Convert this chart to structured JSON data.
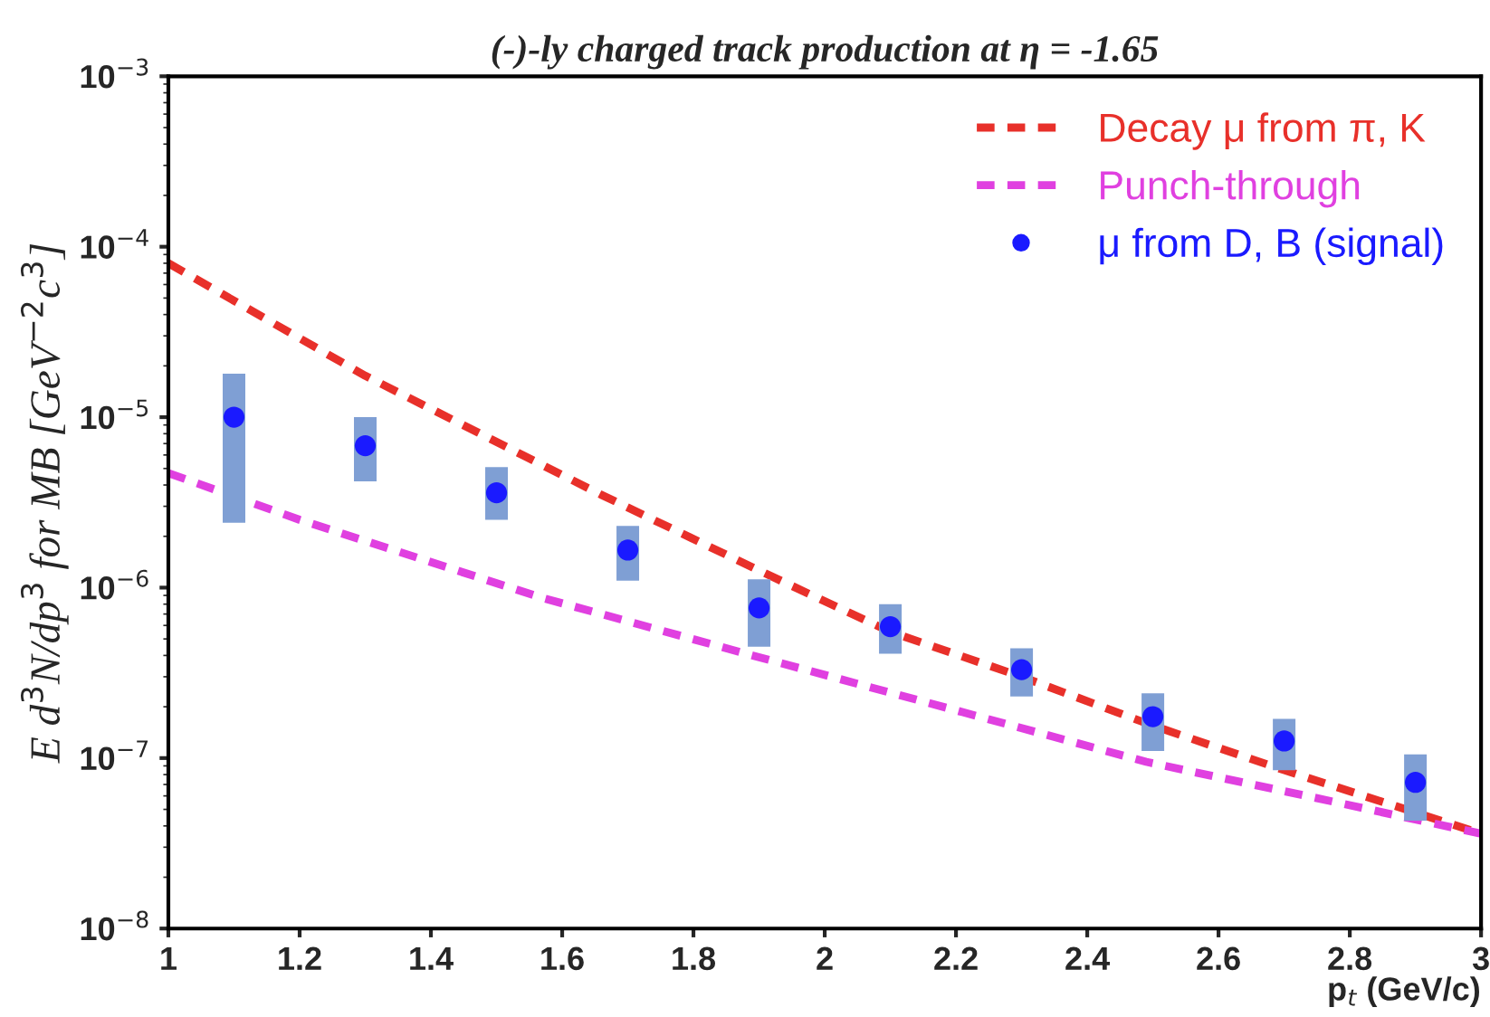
{
  "chart_data": {
    "type": "line",
    "title": "(-)-ly charged track production at η = -1.65",
    "xlabel": "p$_{t}$ (GeV/c)",
    "ylabel": "E d$^{3}$N/dp$^{3}$ for MB [GeV$^{−2}$c$^{3}$]",
    "log": "y",
    "grid": false,
    "legend": "top right",
    "xlim": [
      1,
      3
    ],
    "xticks": [
      1,
      1.2,
      1.4,
      1.6,
      1.8,
      2,
      2.2,
      2.4,
      2.6,
      2.8,
      3
    ],
    "ylim": [
      1e-08,
      0.001
    ],
    "yticks": [
      {
        "value": 1e-08,
        "label": "10$^{−8}$"
      },
      {
        "value": 1e-07,
        "label": "10$^{−7}$"
      },
      {
        "value": 1e-06,
        "label": "10$^{−6}$"
      },
      {
        "value": 1e-05,
        "label": "10$^{−5}$"
      },
      {
        "value": 0.0001,
        "label": "10$^{−4}$"
      },
      {
        "value": 0.001,
        "label": "10$^{−3}$"
      }
    ],
    "series": [
      {
        "name": "Decay μ from π, K",
        "line_style": "dashed",
        "marker": "none",
        "color": "#e8302a",
        "x": [
          1.0,
          1.3,
          1.66,
          1.9,
          2.1,
          2.3,
          2.5,
          2.7,
          3.0
        ],
        "values": [
          8e-05,
          1.75e-05,
          3.5e-06,
          1.26e-06,
          5.5e-07,
          3e-07,
          1.55e-07,
          8.5e-08,
          3.6e-08
        ]
      },
      {
        "name": "Punch-through",
        "line_style": "dashed",
        "marker": "none",
        "color": "#e040e0",
        "x": [
          1.0,
          1.2,
          1.57,
          1.89,
          2.21,
          2.49,
          2.77,
          3.0
        ],
        "values": [
          4.7e-06,
          2.5e-06,
          8.7e-07,
          4e-07,
          1.86e-07,
          9.5e-08,
          5.6e-08,
          3.6e-08
        ]
      },
      {
        "name": "μ from D, B (signal)",
        "type": "scatter",
        "marker": "circle",
        "color": "#1a1aff",
        "x": [
          1.1,
          1.3,
          1.5,
          1.7,
          1.9,
          2.1,
          2.3,
          2.5,
          2.7,
          2.9
        ],
        "values": [
          1e-05,
          6.8e-06,
          3.6e-06,
          1.66e-06,
          7.6e-07,
          5.9e-07,
          3.3e-07,
          1.75e-07,
          1.26e-07,
          7.2e-08
        ],
        "errors": [
          [
            2.4e-06,
            1.8e-05
          ],
          [
            4.2e-06,
            1e-05
          ],
          [
            2.5e-06,
            5.1e-06
          ],
          [
            1.1e-06,
            2.3e-06
          ],
          [
            4.5e-07,
            1.12e-06
          ],
          [
            4.1e-07,
            8e-07
          ],
          [
            2.3e-07,
            4.4e-07
          ],
          [
            1.1e-07,
            2.4e-07
          ],
          [
            8.5e-08,
            1.7e-07
          ],
          [
            4.3e-08,
            1.05e-07
          ]
        ]
      }
    ]
  }
}
